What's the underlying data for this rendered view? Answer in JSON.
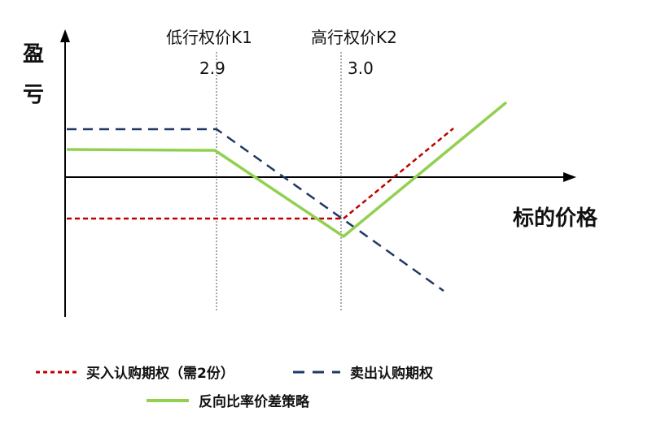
{
  "y_axis_label": [
    "盈",
    "亏"
  ],
  "x_axis_label": "标的价格",
  "strikes": [
    {
      "name": "低行权价K1",
      "value": "2.9"
    },
    {
      "name": "高行权价K2",
      "value": "3.0"
    }
  ],
  "legend": [
    {
      "label": "买入认购期权（需2份）",
      "style": "dotted",
      "color": "#c00000"
    },
    {
      "label": "卖出认购期权",
      "style": "dashed",
      "color": "#1f3864"
    },
    {
      "label": "反向比率价差策略",
      "style": "solid",
      "color": "#92d050"
    }
  ],
  "colors": {
    "axis": "#000000",
    "guide": "#555555"
  }
}
